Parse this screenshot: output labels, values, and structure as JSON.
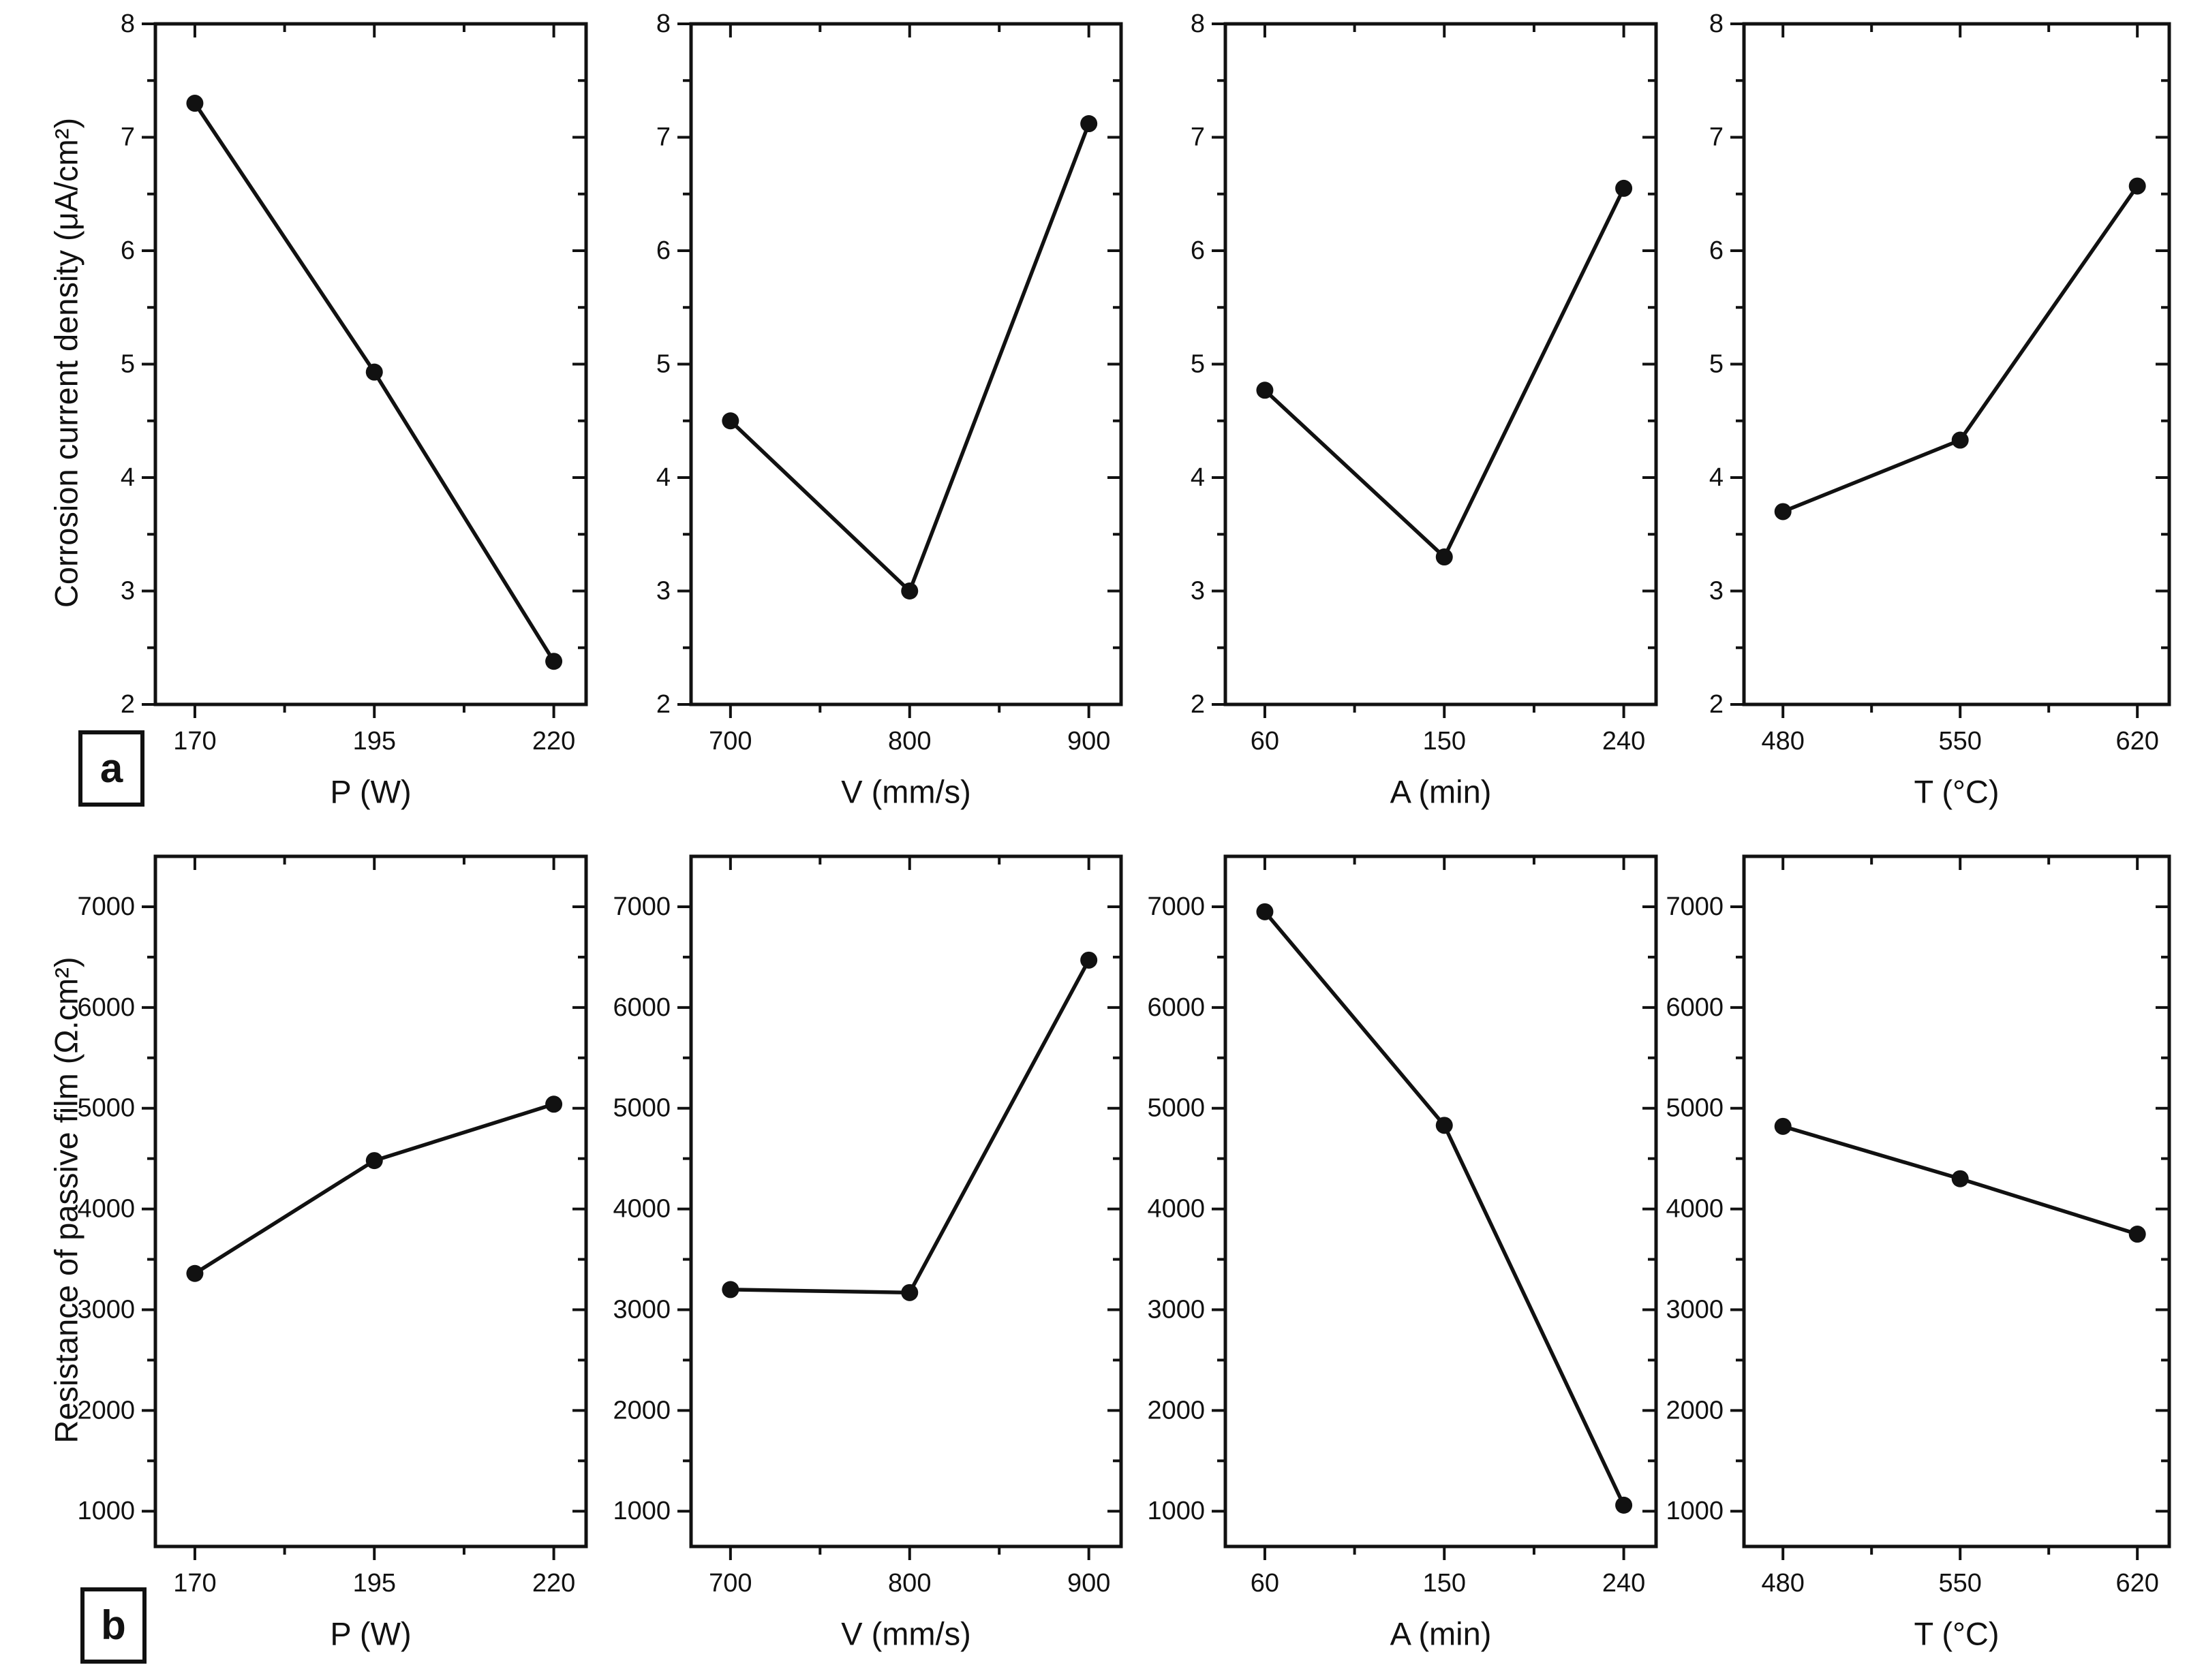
{
  "figure": {
    "background": "#ffffff",
    "ink": "#111111",
    "rows": [
      {
        "panel_label": "a",
        "ylabel": "Corrosion current density (μA/cm²)"
      },
      {
        "panel_label": "b",
        "ylabel": "Resistance of passive film (Ω.cm²)"
      }
    ]
  },
  "chart_data": [
    {
      "type": "line",
      "row": "a",
      "col": 0,
      "x": [
        170,
        195,
        220
      ],
      "y": [
        7.3,
        4.93,
        2.38
      ],
      "xtick_labels": [
        "170",
        "195",
        "220"
      ],
      "xlabel": "P (W)",
      "ylabel": "Corrosion current density (μA/cm²)",
      "ylim": [
        2,
        8
      ],
      "ymajors": [
        2,
        3,
        4,
        5,
        6,
        7,
        8
      ],
      "yminor_step": 0.5,
      "ytick_labels": [
        "2",
        "3",
        "4",
        "5",
        "6",
        "7",
        "8"
      ],
      "legend": null,
      "grid": false,
      "marker": "filled-circle",
      "color": "#111111"
    },
    {
      "type": "line",
      "row": "a",
      "col": 1,
      "x": [
        700,
        800,
        900
      ],
      "y": [
        4.5,
        3.0,
        7.12
      ],
      "xtick_labels": [
        "700",
        "800",
        "900"
      ],
      "xlabel": "V (mm/s)",
      "ylabel": "Corrosion current density (μA/cm²)",
      "ylim": [
        2,
        8
      ],
      "ymajors": [
        2,
        3,
        4,
        5,
        6,
        7,
        8
      ],
      "yminor_step": 0.5,
      "ytick_labels": [
        "2",
        "3",
        "4",
        "5",
        "6",
        "7",
        "8"
      ],
      "legend": null,
      "grid": false,
      "marker": "filled-circle",
      "color": "#111111"
    },
    {
      "type": "line",
      "row": "a",
      "col": 2,
      "x": [
        60,
        150,
        240
      ],
      "y": [
        4.77,
        3.3,
        6.55
      ],
      "xtick_labels": [
        "60",
        "150",
        "240"
      ],
      "xlabel": "A (min)",
      "ylabel": "Corrosion current density (μA/cm²)",
      "ylim": [
        2,
        8
      ],
      "ymajors": [
        2,
        3,
        4,
        5,
        6,
        7,
        8
      ],
      "yminor_step": 0.5,
      "ytick_labels": [
        "2",
        "3",
        "4",
        "5",
        "6",
        "7",
        "8"
      ],
      "legend": null,
      "grid": false,
      "marker": "filled-circle",
      "color": "#111111"
    },
    {
      "type": "line",
      "row": "a",
      "col": 3,
      "x": [
        480,
        550,
        620
      ],
      "y": [
        3.7,
        4.33,
        6.57
      ],
      "xtick_labels": [
        "480",
        "550",
        "620"
      ],
      "xlabel": "T (°C)",
      "ylabel": "Corrosion current density (μA/cm²)",
      "ylim": [
        2,
        8
      ],
      "ymajors": [
        2,
        3,
        4,
        5,
        6,
        7,
        8
      ],
      "yminor_step": 0.5,
      "ytick_labels": [
        "2",
        "3",
        "4",
        "5",
        "6",
        "7",
        "8"
      ],
      "legend": null,
      "grid": false,
      "marker": "filled-circle",
      "color": "#111111"
    },
    {
      "type": "line",
      "row": "b",
      "col": 0,
      "x": [
        170,
        195,
        220
      ],
      "y": [
        3360,
        4480,
        5040
      ],
      "xtick_labels": [
        "170",
        "195",
        "220"
      ],
      "xlabel": "P (W)",
      "ylabel": "Resistance of passive film (Ω.cm²)",
      "ylim": [
        650,
        7500
      ],
      "ymajors": [
        1000,
        2000,
        3000,
        4000,
        5000,
        6000,
        7000
      ],
      "yminor_step": 500,
      "ytick_labels": [
        "1000",
        "2000",
        "3000",
        "4000",
        "5000",
        "6000",
        "7000"
      ],
      "legend": null,
      "grid": false,
      "marker": "filled-circle",
      "color": "#111111"
    },
    {
      "type": "line",
      "row": "b",
      "col": 1,
      "x": [
        700,
        800,
        900
      ],
      "y": [
        3200,
        3170,
        6470
      ],
      "xtick_labels": [
        "700",
        "800",
        "900"
      ],
      "xlabel": "V (mm/s)",
      "ylabel": "Resistance of passive film (Ω.cm²)",
      "ylim": [
        650,
        7500
      ],
      "ymajors": [
        1000,
        2000,
        3000,
        4000,
        5000,
        6000,
        7000
      ],
      "yminor_step": 500,
      "ytick_labels": [
        "1000",
        "2000",
        "3000",
        "4000",
        "5000",
        "6000",
        "7000"
      ],
      "legend": null,
      "grid": false,
      "marker": "filled-circle",
      "color": "#111111"
    },
    {
      "type": "line",
      "row": "b",
      "col": 2,
      "x": [
        60,
        150,
        240
      ],
      "y": [
        6950,
        4830,
        1060
      ],
      "xtick_labels": [
        "60",
        "150",
        "240"
      ],
      "xlabel": "A (min)",
      "ylabel": "Resistance of passive film (Ω.cm²)",
      "ylim": [
        650,
        7500
      ],
      "ymajors": [
        1000,
        2000,
        3000,
        4000,
        5000,
        6000,
        7000
      ],
      "yminor_step": 500,
      "ytick_labels": [
        "1000",
        "2000",
        "3000",
        "4000",
        "5000",
        "6000",
        "7000"
      ],
      "legend": null,
      "grid": false,
      "marker": "filled-circle",
      "color": "#111111"
    },
    {
      "type": "line",
      "row": "b",
      "col": 3,
      "x": [
        480,
        550,
        620
      ],
      "y": [
        4820,
        4300,
        3750
      ],
      "xtick_labels": [
        "480",
        "550",
        "620"
      ],
      "xlabel": "T (°C)",
      "ylabel": "Resistance of passive film (Ω.cm²)",
      "ylim": [
        650,
        7500
      ],
      "ymajors": [
        1000,
        2000,
        3000,
        4000,
        5000,
        6000,
        7000
      ],
      "yminor_step": 500,
      "ytick_labels": [
        "1000",
        "2000",
        "3000",
        "4000",
        "5000",
        "6000",
        "7000"
      ],
      "legend": null,
      "grid": false,
      "marker": "filled-circle",
      "color": "#111111"
    }
  ]
}
